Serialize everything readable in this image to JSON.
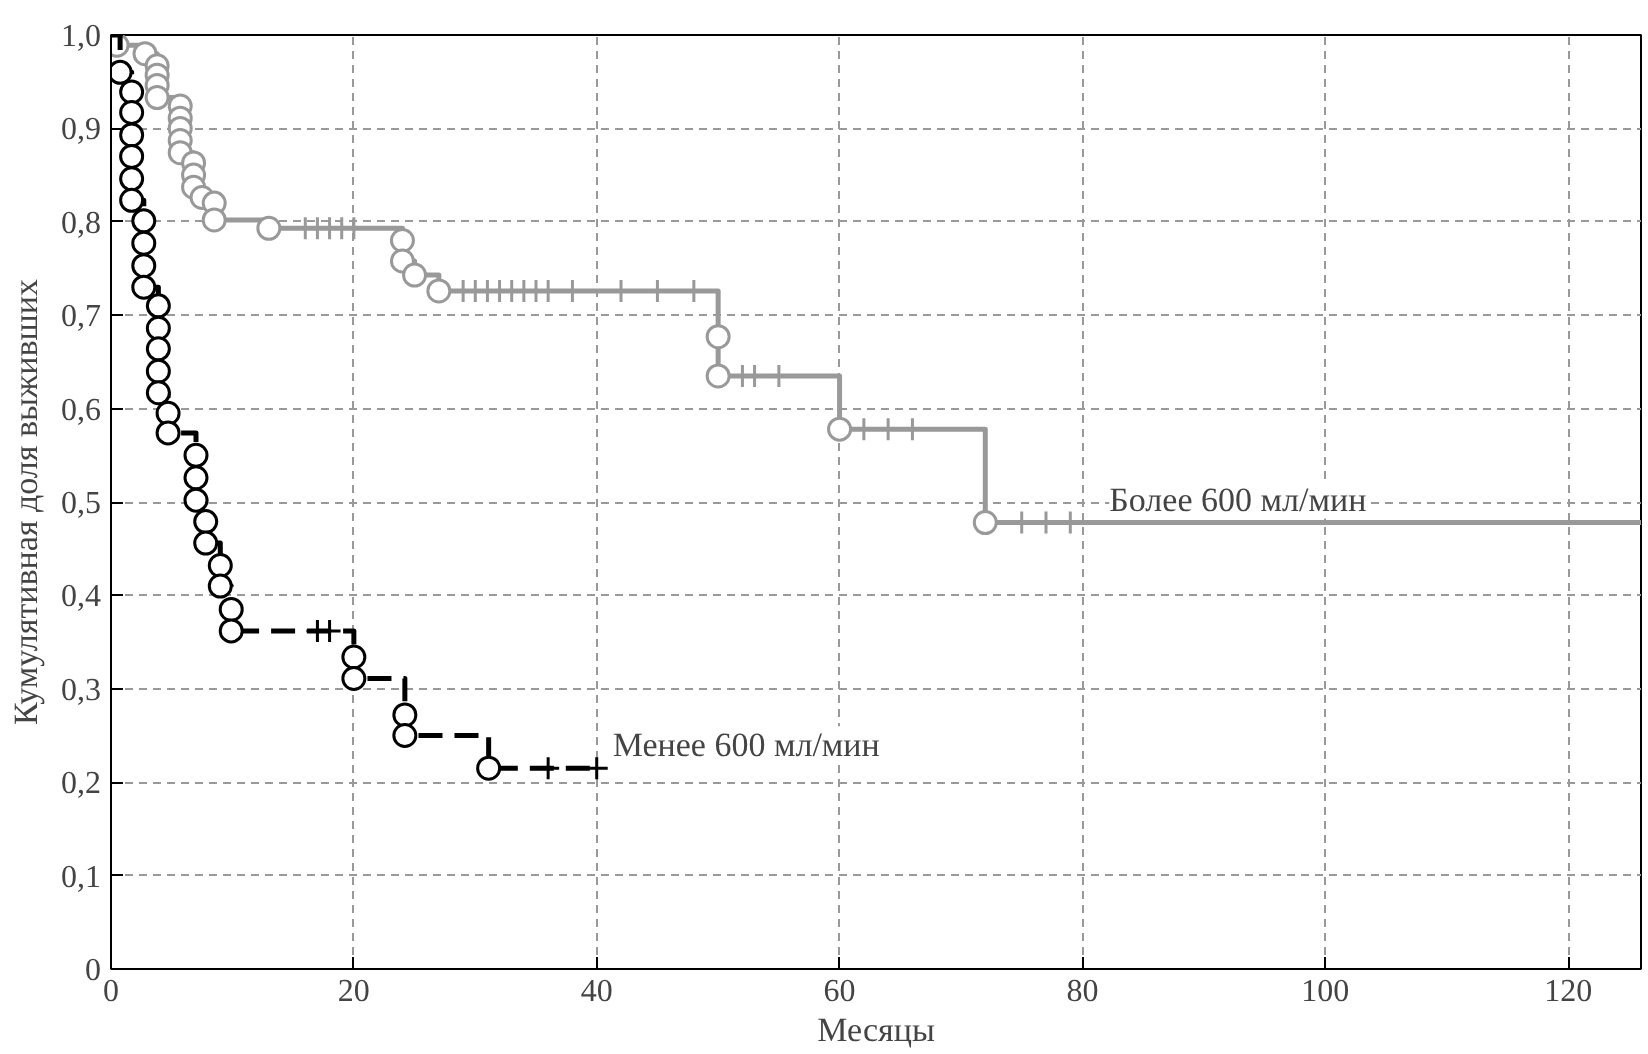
{
  "chart_data": {
    "type": "step",
    "xlabel": "Месяцы",
    "ylabel": "Кумулятивная доля выживших",
    "xlim": [
      0,
      126
    ],
    "xticks": [
      0,
      20,
      40,
      60,
      80,
      100,
      120
    ],
    "ylim": [
      0,
      1
    ],
    "yticks": [
      {
        "value": 0,
        "label": "0"
      },
      {
        "value": 0.1,
        "label": "0,1"
      },
      {
        "value": 0.2,
        "label": "0,2"
      },
      {
        "value": 0.3,
        "label": "0,3"
      },
      {
        "value": 0.4,
        "label": "0,4"
      },
      {
        "value": 0.5,
        "label": "0,5"
      },
      {
        "value": 0.6,
        "label": "0,6"
      },
      {
        "value": 0.7,
        "label": "0,7"
      },
      {
        "value": 0.8,
        "label": "0,8"
      },
      {
        "value": 0.9,
        "label": "0,9"
      },
      {
        "value": 1,
        "label": "1,0"
      }
    ],
    "grid": true,
    "legend": false,
    "series": [
      {
        "name": "Более 600 мл/мин",
        "color": "#999999",
        "line_style": "solid",
        "x": [
          0,
          0.5,
          2.8,
          3.8,
          5.7,
          6.8,
          7.5,
          8.5,
          13,
          24,
          25,
          27,
          50,
          60,
          72,
          126
        ],
        "values": [
          1,
          0.989,
          0.98,
          0.933,
          0.874,
          0.837,
          0.826,
          0.802,
          0.793,
          0.758,
          0.743,
          0.726,
          0.635,
          0.578,
          0.478,
          0.478
        ]
      },
      {
        "type": "scatter",
        "marker": "circle",
        "color": "#999999",
        "x": [
          0.5,
          2.8,
          3.8,
          3.8,
          3.8,
          3.8,
          5.7,
          5.7,
          5.7,
          5.7,
          5.7,
          6.8,
          6.8,
          6.8,
          7.5,
          8.5,
          8.5,
          13,
          24,
          24,
          25,
          27,
          50,
          50,
          60,
          72
        ],
        "values": [
          0.989,
          0.98,
          0.967,
          0.957,
          0.946,
          0.933,
          0.924,
          0.911,
          0.9,
          0.887,
          0.874,
          0.863,
          0.85,
          0.837,
          0.826,
          0.82,
          0.802,
          0.793,
          0.78,
          0.758,
          0.743,
          0.726,
          0.677,
          0.635,
          0.578,
          0.478
        ]
      },
      {
        "type": "scatter",
        "marker": "cross",
        "color": "#999999",
        "x": [
          16,
          17,
          18,
          19,
          20,
          29,
          30,
          31,
          32,
          33,
          34,
          35,
          36,
          38,
          42,
          45,
          48,
          52,
          53,
          55,
          62,
          64,
          66,
          75,
          77,
          79
        ],
        "values": [
          0.793,
          0.793,
          0.793,
          0.793,
          0.793,
          0.726,
          0.726,
          0.726,
          0.726,
          0.726,
          0.726,
          0.726,
          0.726,
          0.726,
          0.726,
          0.726,
          0.726,
          0.635,
          0.635,
          0.635,
          0.578,
          0.578,
          0.578,
          0.478,
          0.478,
          0.478
        ]
      },
      {
        "name": "Менее 600 мл/мин",
        "color": "#000000",
        "line_style": "dashed",
        "x": [
          0,
          0.75,
          1.7,
          2.7,
          3.9,
          4.7,
          7,
          7.8,
          9,
          9.9,
          20,
          24.2,
          31.1,
          40
        ],
        "values": [
          1,
          0.96,
          0.823,
          0.73,
          0.617,
          0.574,
          0.502,
          0.456,
          0.41,
          0.362,
          0.311,
          0.25,
          0.215,
          0.215
        ]
      },
      {
        "type": "scatter",
        "marker": "circle",
        "color": "#000000",
        "x": [
          0.75,
          1.7,
          1.7,
          1.7,
          1.7,
          1.7,
          1.7,
          2.7,
          2.7,
          2.7,
          2.7,
          3.9,
          3.9,
          3.9,
          3.9,
          3.9,
          4.7,
          4.7,
          7,
          7,
          7,
          7.8,
          7.8,
          9,
          9,
          9.9,
          9.9,
          20,
          20,
          24.2,
          24.2,
          31.1
        ],
        "values": [
          0.96,
          0.939,
          0.917,
          0.893,
          0.87,
          0.846,
          0.823,
          0.801,
          0.777,
          0.753,
          0.73,
          0.71,
          0.686,
          0.664,
          0.64,
          0.617,
          0.595,
          0.574,
          0.55,
          0.526,
          0.502,
          0.479,
          0.456,
          0.432,
          0.41,
          0.385,
          0.362,
          0.334,
          0.311,
          0.272,
          0.25,
          0.215
        ]
      },
      {
        "type": "scatter",
        "marker": "cross",
        "color": "#000000",
        "x": [
          17,
          18,
          36,
          40
        ],
        "values": [
          0.362,
          0.362,
          0.215,
          0.215
        ]
      }
    ]
  }
}
